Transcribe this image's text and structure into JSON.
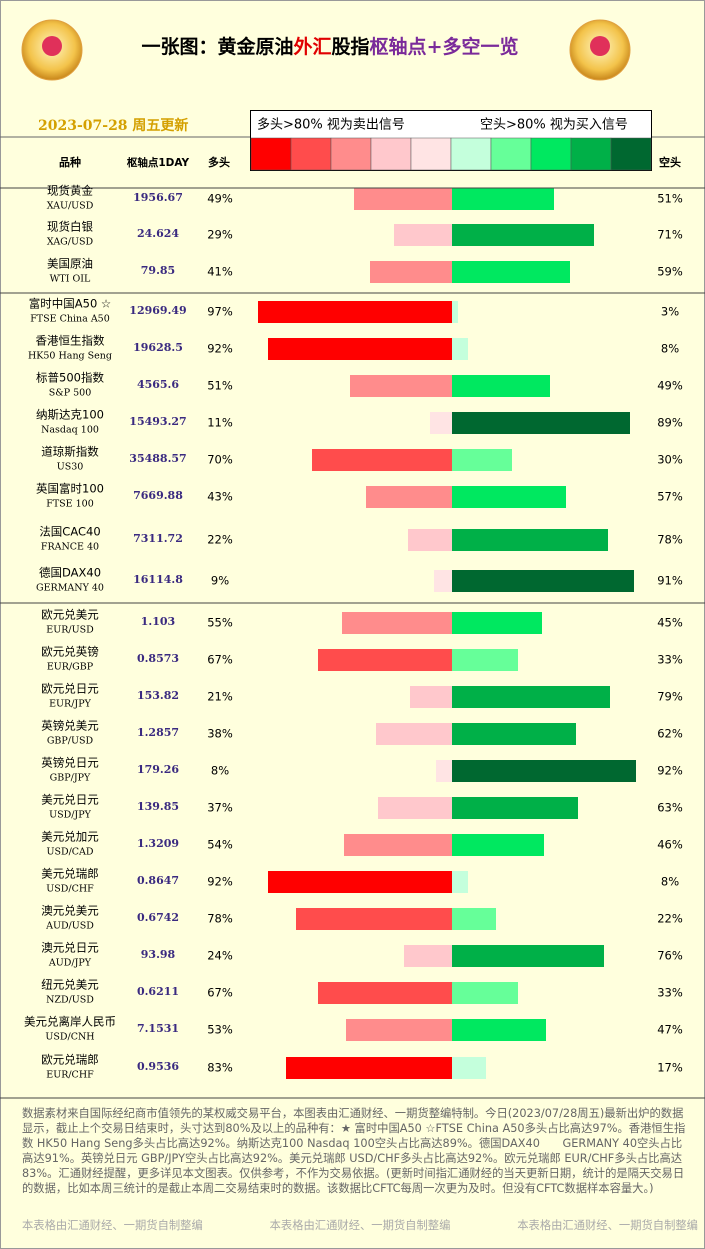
{
  "header": {
    "title_parts": [
      {
        "text": "一张图：黄金原油",
        "color": "#000000"
      },
      {
        "text": "外汇",
        "color": "#e00000"
      },
      {
        "text": "股指",
        "color": "#000000"
      },
      {
        "text": "枢轴点",
        "color": "#7a2a9a"
      },
      {
        "text": "+多空一览",
        "color": "#7a2a9a"
      }
    ],
    "date": "2023-07-28 周五更新",
    "legend_long": "多头>80% 视为卖出信号",
    "legend_short": "空头>80% 视为买入信号",
    "col_name": "品种",
    "col_pivot": "枢轴点1DAY",
    "col_long": "多头",
    "col_short": "空头"
  },
  "colors": {
    "long": [
      "#ffe4e4",
      "#ffc8cc",
      "#ff8c8c",
      "#ff4c4c",
      "#ff0000"
    ],
    "short": [
      "#c4ffdc",
      "#66ff99",
      "#00e860",
      "#00b048",
      "#006830"
    ]
  },
  "groups": [
    {
      "rows": [
        {
          "name": "现货黄金",
          "code": "XAU/USD",
          "pivot": "1956.67",
          "long": 49,
          "long_label": "49%",
          "short": 51,
          "short_label": "51%"
        },
        {
          "name": "现货白银",
          "code": "XAG/USD",
          "pivot": "24.624",
          "long": 29,
          "long_label": "29%",
          "short": 71,
          "short_label": "71%"
        },
        {
          "name": "美国原油",
          "code": "WTI OIL",
          "pivot": "79.85",
          "long": 41,
          "long_label": "41%",
          "short": 59,
          "short_label": "59%"
        }
      ]
    },
    {
      "rows": [
        {
          "name": "富时中国A50 ☆",
          "code": "FTSE China A50",
          "pivot": "12969.49",
          "long": 97,
          "long_label": "97%",
          "short": 3,
          "short_label": "3%"
        },
        {
          "name": "香港恒生指数",
          "code": "HK50 Hang Seng",
          "pivot": "19628.5",
          "long": 92,
          "long_label": "92%",
          "short": 8,
          "short_label": "8%"
        },
        {
          "name": "标普500指数",
          "code": "S&P 500",
          "pivot": "4565.6",
          "long": 51,
          "long_label": "51%",
          "short": 49,
          "short_label": "49%"
        },
        {
          "name": "纳斯达克100",
          "code": "Nasdaq 100",
          "pivot": "15493.27",
          "long": 11,
          "long_label": "11%",
          "short": 89,
          "short_label": "89%"
        },
        {
          "name": "道琼斯指数",
          "code": "US30",
          "pivot": "35488.57",
          "long": 70,
          "long_label": "70%",
          "short": 30,
          "short_label": "30%"
        },
        {
          "name": "英国富时100",
          "code": "FTSE 100",
          "pivot": "7669.88",
          "long": 43,
          "long_label": "43%",
          "short": 57,
          "short_label": "57%"
        },
        {
          "name": "法国CAC40",
          "code": "FRANCE 40",
          "pivot": "7311.72",
          "long": 22,
          "long_label": "22%",
          "short": 78,
          "short_label": "78%"
        },
        {
          "name": "德国DAX40",
          "code": "GERMANY 40",
          "pivot": "16114.8",
          "long": 9,
          "long_label": "9%",
          "short": 91,
          "short_label": "91%"
        }
      ]
    },
    {
      "rows": [
        {
          "name": "欧元兑美元",
          "code": "EUR/USD",
          "pivot": "1.103",
          "long": 55,
          "long_label": "55%",
          "short": 45,
          "short_label": "45%"
        },
        {
          "name": "欧元兑英镑",
          "code": "EUR/GBP",
          "pivot": "0.8573",
          "long": 67,
          "long_label": "67%",
          "short": 33,
          "short_label": "33%"
        },
        {
          "name": "欧元兑日元",
          "code": "EUR/JPY",
          "pivot": "153.82",
          "long": 21,
          "long_label": "21%",
          "short": 79,
          "short_label": "79%"
        },
        {
          "name": "英镑兑美元",
          "code": "GBP/USD",
          "pivot": "1.2857",
          "long": 38,
          "long_label": "38%",
          "short": 62,
          "short_label": "62%"
        },
        {
          "name": "英镑兑日元",
          "code": "GBP/JPY",
          "pivot": "179.26",
          "long": 8,
          "long_label": "8%",
          "short": 92,
          "short_label": "92%"
        },
        {
          "name": "美元兑日元",
          "code": "USD/JPY",
          "pivot": "139.85",
          "long": 37,
          "long_label": "37%",
          "short": 63,
          "short_label": "63%"
        },
        {
          "name": "美元兑加元",
          "code": "USD/CAD",
          "pivot": "1.3209",
          "long": 54,
          "long_label": "54%",
          "short": 46,
          "short_label": "46%"
        },
        {
          "name": "美元兑瑞郎",
          "code": "USD/CHF",
          "pivot": "0.8647",
          "long": 92,
          "long_label": "92%",
          "short": 8,
          "short_label": "8%"
        },
        {
          "name": "澳元兑美元",
          "code": "AUD/USD",
          "pivot": "0.6742",
          "long": 78,
          "long_label": "78%",
          "short": 22,
          "short_label": "22%"
        },
        {
          "name": "澳元兑日元",
          "code": "AUD/JPY",
          "pivot": "93.98",
          "long": 24,
          "long_label": "24%",
          "short": 76,
          "short_label": "76%"
        },
        {
          "name": "纽元兑美元",
          "code": "NZD/USD",
          "pivot": "0.6211",
          "long": 67,
          "long_label": "67%",
          "short": 33,
          "short_label": "33%"
        },
        {
          "name": "美元兑离岸人民币",
          "code": "USD/CNH",
          "pivot": "7.1531",
          "long": 53,
          "long_label": "53%",
          "short": 47,
          "short_label": "47%"
        },
        {
          "name": "欧元兑瑞郎",
          "code": "EUR/CHF",
          "pivot": "0.9536",
          "long": 83,
          "long_label": "83%",
          "short": 17,
          "short_label": "17%"
        }
      ]
    }
  ],
  "footer": {
    "note": "数据素材来自国际经纪商市值领先的某权威交易平台，本图表由汇通财经、一期货整编特制。今日(2023/07/28周五)最新出炉的数据显示，截止上个交易日结束时，头寸达到80%及以上的品种有：★ 富时中国A50 ☆FTSE China A50多头占比高达97%。香港恒生指数 HK50 Hang Seng多头占比高达92%。纳斯达克100 Nasdaq 100空头占比高达89%。德国DAX40　　GERMANY 40空头占比高达91%。英镑兑日元 GBP/JPY空头占比高达92%。美元兑瑞郎 USD/CHF多头占比高达92%。欧元兑瑞郎 EUR/CHF多头占比高达83%。汇通财经提醒，更多详见本文图表。仅供参考，不作为交易依据。(更新时间指汇通财经的当天更新日期，统计的是隔天交易日的数据，比如本周三统计的是截止本周二交易结束时的数据。该数据比CFTC每周一次更为及时。但没有CFTC数据样本容量大。)",
    "credits": [
      "本表格由汇通财经、一期货自制整编",
      "本表格由汇通财经、一期货自制整编",
      "本表格由汇通财经、一期货自制整编"
    ]
  }
}
